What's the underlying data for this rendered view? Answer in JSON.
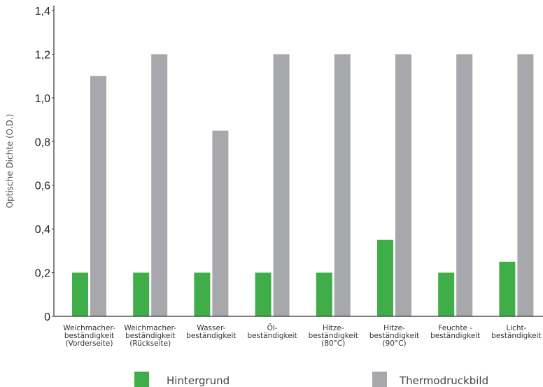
{
  "chart_data": {
    "type": "bar",
    "ylabel": "Optische Dichte (O.D.)",
    "xlabel": "",
    "ylim": [
      0,
      1.4
    ],
    "yticks": [
      "0",
      "0,2",
      "0,4",
      "0,6",
      "0,8",
      "1,0",
      "1,2",
      "1,4"
    ],
    "categories": [
      [
        "Weichmacher-",
        "beständigkeit",
        "(Vorderseite)"
      ],
      [
        "Weichmacher-",
        "beständigkeit",
        "(Rückseite)"
      ],
      [
        "Wasser-",
        "beständigkeit"
      ],
      [
        "Öl-",
        "beständigkeit"
      ],
      [
        "Hitze-",
        "beständigkeit",
        "(80°C)"
      ],
      [
        "Hitze-",
        "beständigkeit",
        "(90°C)"
      ],
      [
        "Feuchte -",
        "beständigkeit"
      ],
      [
        "Licht-",
        "beständigkeit"
      ]
    ],
    "series": [
      {
        "name": "Hintergrund",
        "color": "#3fae49",
        "values": [
          0.2,
          0.2,
          0.2,
          0.2,
          0.2,
          0.35,
          0.2,
          0.25
        ]
      },
      {
        "name": "Thermodruckbild",
        "color": "#a7a8ac",
        "values": [
          1.1,
          1.2,
          0.85,
          1.2,
          1.2,
          1.2,
          1.2,
          1.2
        ]
      }
    ],
    "legend_position": "bottom",
    "grid": false
  }
}
